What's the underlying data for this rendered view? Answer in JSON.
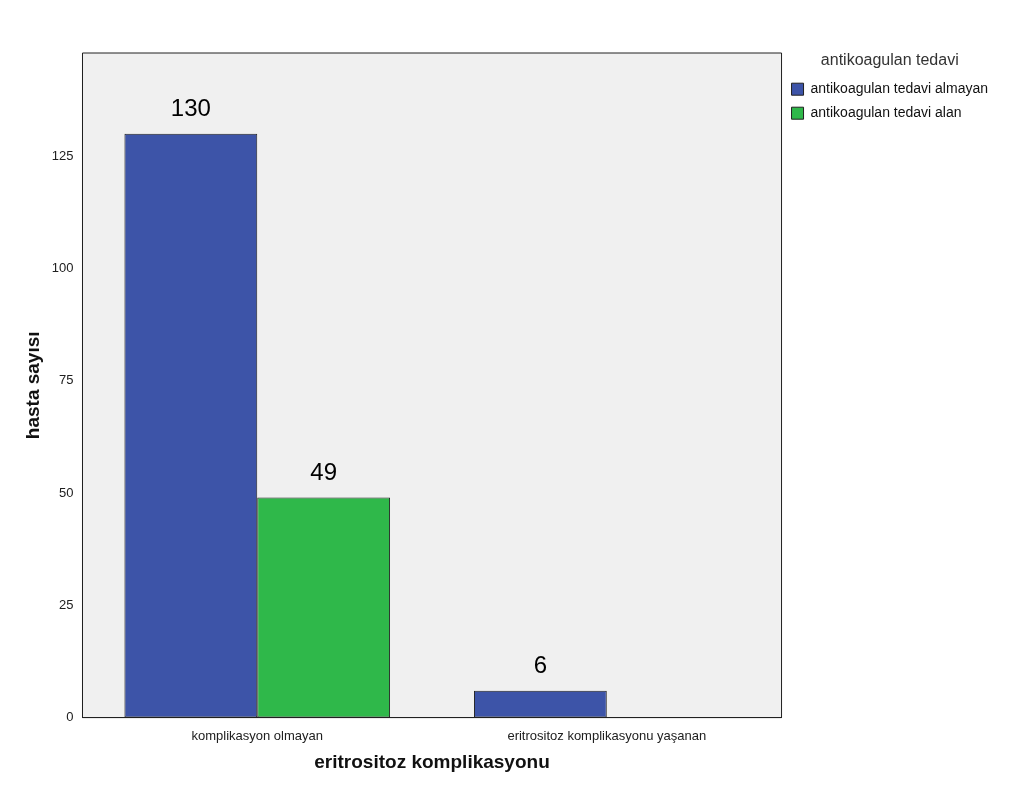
{
  "chart_data": {
    "type": "bar",
    "xlabel": "eritrositoz komplikasyonu",
    "ylabel": "hasta sayısı",
    "legend_title": "antikoagulan tedavi",
    "categories": [
      "komplikasyon olmayan",
      "eritrositoz komplikasyonu yaşanan"
    ],
    "series": [
      {
        "name": "antikoagulan tedavi almayan",
        "color": "#3d54a8",
        "values": [
          130,
          6
        ],
        "value_labels": [
          "130",
          "6"
        ]
      },
      {
        "name": "antikoagulan tedavi alan",
        "color": "#2fb84a",
        "values": [
          49,
          0
        ],
        "value_labels": [
          "49",
          null
        ]
      }
    ],
    "ylim": [
      0,
      148
    ],
    "yticks": [
      0,
      25,
      50,
      75,
      100,
      125
    ],
    "grid": false,
    "legend": "top right"
  }
}
